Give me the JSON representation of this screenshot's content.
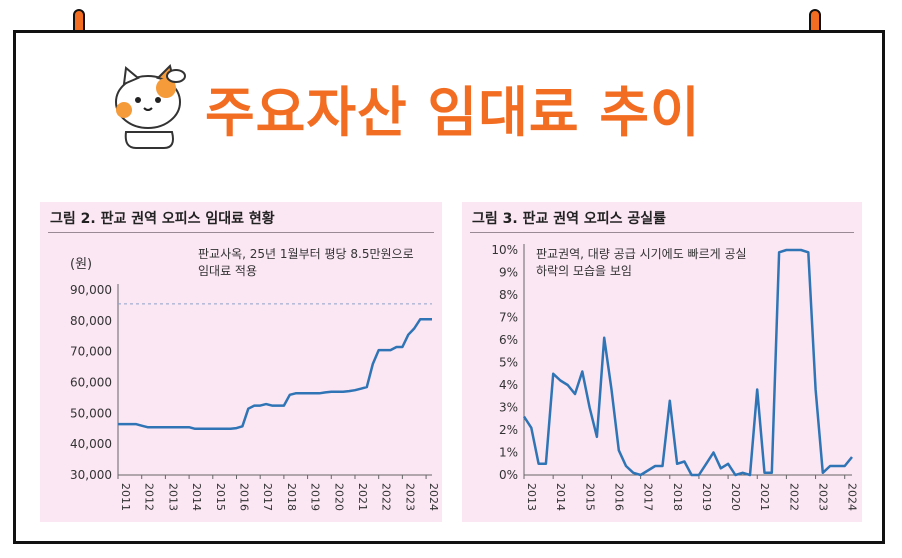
{
  "header": {
    "title": "주요자산 임대료 추이"
  },
  "colors": {
    "title": "#f26d21",
    "line": "#2f74b5",
    "panel_bg": "#fbe6f3",
    "dashed": "#8fa4c8"
  },
  "icons": {
    "mascot": "cat-saluting-icon",
    "pin": "pushpin-icon"
  },
  "chart_data": [
    {
      "type": "line",
      "title": "그림 2. 판교 권역 오피스 임대료 현황",
      "unit_label": "(원)",
      "annotation": "판교사옥, 25년 1월부터 평당 8.5만원으로\n임대료 적용",
      "reference_line": 85500,
      "ylim": [
        30000,
        90000
      ],
      "yticks": [
        "30,000",
        "40,000",
        "50,000",
        "60,000",
        "70,000",
        "80,000",
        "90,000"
      ],
      "xticks": [
        "2011",
        "2012",
        "2013",
        "2014",
        "2015",
        "2016",
        "2017",
        "2018",
        "2019",
        "2020",
        "2021",
        "2022",
        "2023",
        "2024"
      ],
      "xlim": [
        2011,
        2024.25
      ],
      "grid": false,
      "series": [
        {
          "x": [
            2011.0,
            2011.75,
            2012.0,
            2012.25,
            2013.0,
            2013.75,
            2014.0,
            2014.25,
            2015.0,
            2015.75,
            2016.0,
            2016.25,
            2016.5,
            2016.75,
            2017.0,
            2017.25,
            2017.5,
            2017.75,
            2018.0,
            2018.25,
            2018.5,
            2018.75,
            2019.0,
            2019.5,
            2019.75,
            2020.0,
            2020.5,
            2020.75,
            2021.0,
            2021.25,
            2021.5,
            2021.75,
            2022.0,
            2022.25,
            2022.5,
            2022.75,
            2023.0,
            2023.25,
            2023.5,
            2023.75,
            2024.0,
            2024.25
          ],
          "values": [
            46500,
            46500,
            46000,
            45500,
            45500,
            45500,
            45500,
            45000,
            45000,
            45000,
            45200,
            45800,
            51500,
            52500,
            52500,
            53000,
            52500,
            52500,
            52500,
            56000,
            56500,
            56500,
            56500,
            56500,
            56800,
            57000,
            57000,
            57200,
            57500,
            58000,
            58500,
            66000,
            70500,
            70500,
            70500,
            71500,
            71500,
            75500,
            77500,
            80500,
            80500,
            80500
          ]
        }
      ]
    },
    {
      "type": "line",
      "title": "그림 3. 판교 권역 오피스 공실률",
      "annotation": "판교권역, 대량 공급 시기에도 빠르게 공실\n하락의 모습을 보임",
      "ylim": [
        0,
        10
      ],
      "yticks": [
        "0%",
        "1%",
        "2%",
        "3%",
        "4%",
        "5%",
        "6%",
        "7%",
        "8%",
        "9%",
        "10%"
      ],
      "xticks": [
        "2013",
        "2014",
        "2015",
        "2016",
        "2017",
        "2018",
        "2019",
        "2020",
        "2021",
        "2022",
        "2023",
        "2024"
      ],
      "xlim": [
        2013,
        2024.25
      ],
      "grid": false,
      "series": [
        {
          "x": [
            2013.0,
            2013.25,
            2013.5,
            2013.75,
            2014.0,
            2014.25,
            2014.5,
            2014.75,
            2015.0,
            2015.25,
            2015.5,
            2015.75,
            2016.0,
            2016.25,
            2016.5,
            2016.75,
            2017.0,
            2017.25,
            2017.5,
            2017.75,
            2018.0,
            2018.25,
            2018.5,
            2018.75,
            2019.0,
            2019.25,
            2019.5,
            2019.75,
            2020.0,
            2020.25,
            2020.5,
            2020.75,
            2021.0,
            2021.25,
            2021.5,
            2021.75,
            2022.0,
            2022.25,
            2022.5,
            2022.75,
            2023.0,
            2023.25,
            2023.5,
            2023.75,
            2024.0,
            2024.25
          ],
          "values": [
            2.6,
            2.1,
            0.5,
            0.5,
            4.5,
            4.2,
            4.0,
            3.6,
            4.6,
            3.0,
            1.7,
            6.1,
            3.8,
            1.1,
            0.4,
            0.1,
            0.0,
            0.2,
            0.4,
            0.4,
            3.3,
            0.5,
            0.6,
            0.0,
            0.0,
            0.5,
            1.0,
            0.3,
            0.5,
            0.0,
            0.1,
            0.0,
            3.8,
            0.1,
            0.1,
            9.9,
            10.0,
            10.0,
            10.0,
            9.9,
            3.8,
            0.1,
            0.4,
            0.4,
            0.4,
            0.8
          ]
        }
      ]
    }
  ]
}
